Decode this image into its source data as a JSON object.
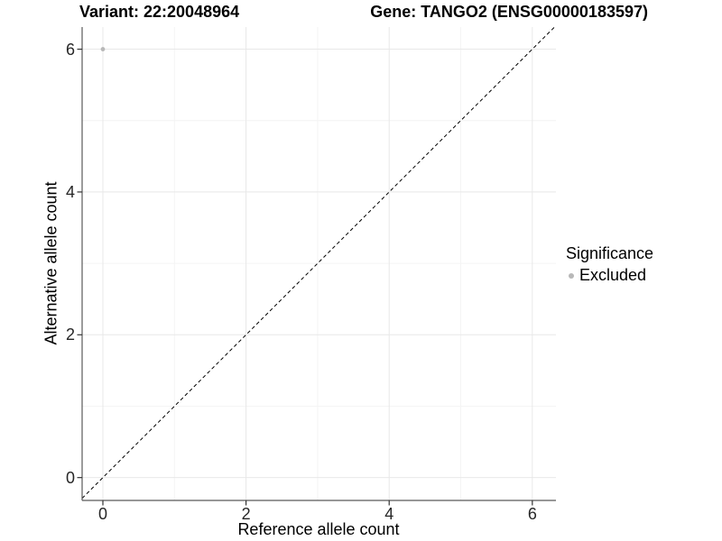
{
  "titles": {
    "variant": "Variant: 22:20048964",
    "gene": "Gene: TANGO2 (ENSG00000183597)"
  },
  "legend": {
    "title": "Significance",
    "position": "right",
    "items": [
      {
        "label": "Excluded",
        "color": "#b8b8b8",
        "marker": "circle"
      }
    ]
  },
  "chart_data": {
    "type": "scatter",
    "xlabel": "Reference allele count",
    "ylabel": "Alternative allele count",
    "xlim": [
      -0.29,
      6.33
    ],
    "ylim": [
      -0.32,
      6.31
    ],
    "x_ticks": [
      0,
      2,
      4,
      6
    ],
    "y_ticks": [
      0,
      2,
      4,
      6
    ],
    "x_minor_ticks": [
      1,
      3,
      5
    ],
    "y_minor_ticks": [
      1,
      3,
      5
    ],
    "grid": true,
    "legend_position": "right",
    "series": [
      {
        "name": "Excluded",
        "color": "#b8b8b8",
        "points": [
          {
            "x": 0,
            "y": 6
          }
        ]
      }
    ],
    "reference_line": {
      "kind": "abline",
      "slope": 1,
      "intercept": 0,
      "style": "dashed",
      "color": "#000000"
    }
  },
  "colors": {
    "background": "#ffffff",
    "grid_major": "#e8e8e8",
    "grid_minor": "#f4f4f4",
    "axis_line": "#595959",
    "tick_mark": "#333333",
    "point": "#b8b8b8",
    "text": "#000000"
  }
}
